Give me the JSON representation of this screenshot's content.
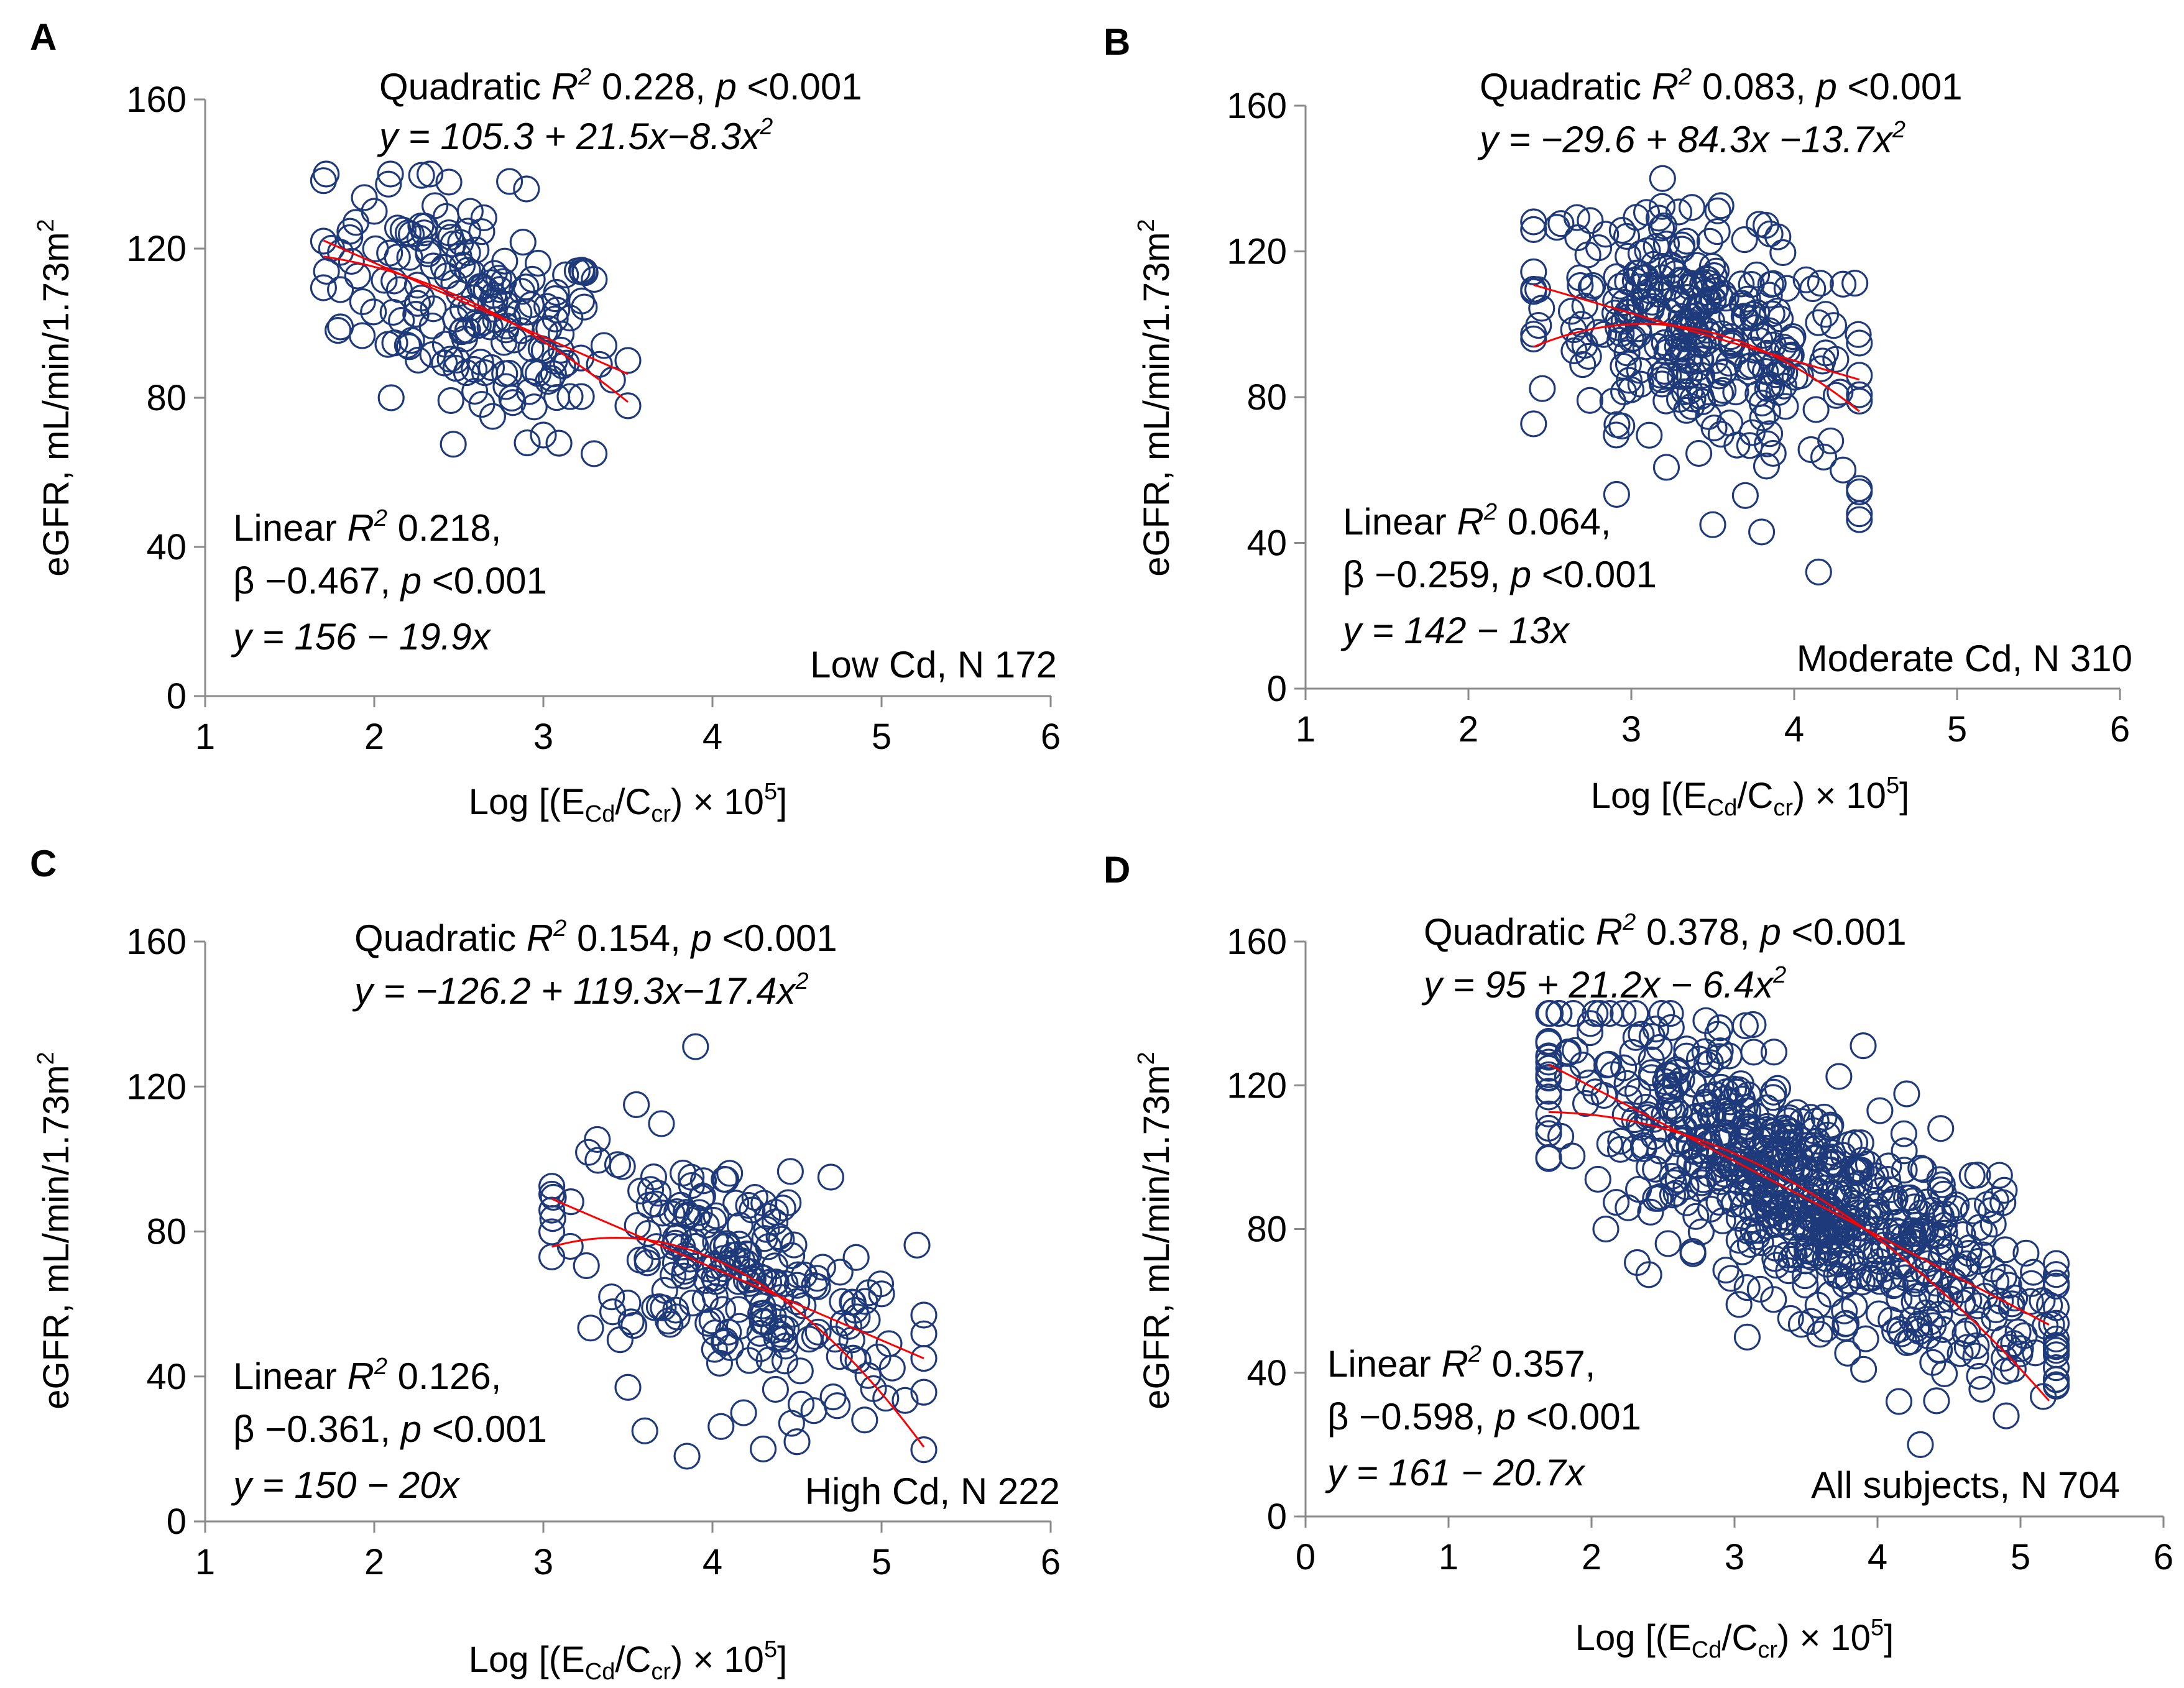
{
  "chart_data": [
    {
      "panel": "A",
      "type": "scatter",
      "xlabel": "Log [(E_Cd/C_cr) × 10^5]",
      "ylabel": "eGFR, mL/min/1.73m²",
      "xlim": [
        1,
        6
      ],
      "ylim": [
        0,
        160
      ],
      "xticks": [
        "1",
        "2",
        "3",
        "4",
        "5",
        "6"
      ],
      "yticks": [
        "0",
        "40",
        "80",
        "120",
        "160"
      ],
      "group_label": "Low Cd, N 172",
      "quad_title": "Quadratic",
      "quad_r2": "R",
      "quad_stats": " 0.228, ",
      "quad_p": "p",
      "quad_pval": " <0.001",
      "quad_eq": "y = 105.3 + 21.5x−8.3x",
      "lin_title": "Linear",
      "lin_r2": " 0.218,",
      "lin_beta": "β −0.467, ",
      "lin_pval": " <0.001",
      "lin_eq": "y = 156 − 19.9x",
      "linear": {
        "a": 156,
        "b": -19.9
      },
      "quadratic": {
        "a": 105.3,
        "b": 21.5,
        "c": -8.3
      },
      "fit_range": [
        1.7,
        3.5
      ],
      "n_points": 172,
      "x_range": [
        1.7,
        3.5
      ],
      "sample_points": [
        [
          1.7,
          122
        ],
        [
          1.8,
          119
        ],
        [
          1.8,
          109
        ],
        [
          1.8,
          99
        ],
        [
          2.0,
          130
        ],
        [
          2.1,
          80
        ],
        [
          2.3,
          126
        ],
        [
          2.5,
          118
        ],
        [
          2.8,
          138
        ],
        [
          2.9,
          136
        ],
        [
          3.0,
          70
        ],
        [
          3.3,
          65
        ],
        [
          3.5,
          90
        ],
        [
          3.2,
          114
        ],
        [
          2.6,
          100
        ],
        [
          2.7,
          75
        ]
      ]
    },
    {
      "panel": "B",
      "type": "scatter",
      "xlabel": "Log [(E_Cd/C_cr) × 10^5]",
      "ylabel": "eGFR, mL/min/1.73m²",
      "xlim": [
        1,
        6
      ],
      "ylim": [
        0,
        160
      ],
      "xticks": [
        "1",
        "2",
        "3",
        "4",
        "5",
        "6"
      ],
      "yticks": [
        "0",
        "40",
        "80",
        "120",
        "160"
      ],
      "group_label": "Moderate Cd, N 310",
      "quad_title": "Quadratic",
      "quad_r2": "R",
      "quad_stats": " 0.083, ",
      "quad_p": "p",
      "quad_pval": " <0.001",
      "quad_eq": "y = −29.6 + 84.3x −13.7x",
      "lin_title": "Linear",
      "lin_r2": " 0.064,",
      "lin_beta": "β −0.259, ",
      "lin_pval": " <0.001",
      "lin_eq": "y = 142 − 13x",
      "linear": {
        "a": 142,
        "b": -13
      },
      "quadratic": {
        "a": -29.6,
        "b": 84.3,
        "c": -13.7
      },
      "fit_range": [
        2.4,
        4.4
      ],
      "n_points": 310,
      "x_range": [
        2.4,
        4.4
      ],
      "sample_points": [
        [
          2.4,
          109
        ],
        [
          2.8,
          121
        ],
        [
          3.2,
          127
        ],
        [
          3.5,
          45
        ],
        [
          3.9,
          124
        ],
        [
          4.15,
          32
        ],
        [
          4.3,
          60
        ],
        [
          4.4,
          54
        ],
        [
          4.4,
          48
        ],
        [
          4.4,
          86
        ],
        [
          4.3,
          111
        ],
        [
          3.8,
          43
        ],
        [
          3.7,
          53
        ]
      ]
    },
    {
      "panel": "C",
      "type": "scatter",
      "xlabel": "Log [(E_Cd/C_cr) × 10^5]",
      "ylabel": "eGFR, mL/min/1.73m²",
      "xlim": [
        1,
        6
      ],
      "ylim": [
        0,
        160
      ],
      "xticks": [
        "1",
        "2",
        "3",
        "4",
        "5",
        "6"
      ],
      "yticks": [
        "0",
        "40",
        "80",
        "120",
        "160"
      ],
      "group_label": "High Cd, N 222",
      "quad_title": "Quadratic",
      "quad_r2": "R",
      "quad_stats": " 0.154, ",
      "quad_p": "p",
      "quad_pval": " <0.001",
      "quad_eq": "y = −126.2 + 119.3x−17.4x",
      "lin_title": "Linear",
      "lin_r2": " 0.126,",
      "lin_beta": "β −0.361, ",
      "lin_pval": " <0.001",
      "lin_eq": "y = 150 − 20x",
      "linear": {
        "a": 150,
        "b": -20
      },
      "quadratic": {
        "a": -126.2,
        "b": 119.3,
        "c": -17.4
      },
      "fit_range": [
        3.05,
        5.25
      ],
      "n_points": 222,
      "x_range": [
        3.05,
        5.25
      ],
      "sample_points": [
        [
          3.05,
          73
        ],
        [
          3.9,
          131
        ],
        [
          3.6,
          25
        ],
        [
          4.3,
          20
        ],
        [
          4.7,
          95
        ],
        [
          4.9,
          28
        ],
        [
          5.25,
          45
        ],
        [
          4.5,
          22
        ],
        [
          3.55,
          115
        ],
        [
          3.5,
          37
        ]
      ]
    },
    {
      "panel": "D",
      "type": "scatter",
      "xlabel": "Log [(E_Cd/C_cr) × 10^5]",
      "ylabel": "eGFR, mL/min/1.73m²",
      "xlim": [
        0,
        6
      ],
      "ylim": [
        0,
        160
      ],
      "xticks": [
        "0",
        "1",
        "2",
        "3",
        "4",
        "5",
        "6"
      ],
      "yticks": [
        "0",
        "40",
        "80",
        "120",
        "160"
      ],
      "group_label": "All subjects, N 704",
      "quad_title": "Quadratic",
      "quad_r2": "R",
      "quad_stats": " 0.378, ",
      "quad_p": "p",
      "quad_pval": " <0.001",
      "quad_eq": "y = 95 + 21.2x − 6.4x",
      "lin_title": "Linear",
      "lin_r2": " 0.357,",
      "lin_beta": " β −0.598, ",
      "lin_pval": " <0.001",
      "lin_eq": "y = 161 − 20.7x",
      "linear": {
        "a": 161,
        "b": -20.7
      },
      "quadratic": {
        "a": 95,
        "b": 21.2,
        "c": -6.4
      },
      "fit_range": [
        1.7,
        5.2
      ],
      "n_points": 704,
      "x_range": [
        1.7,
        5.25
      ],
      "sample_points": [
        [
          1.7,
          122
        ],
        [
          2.1,
          80
        ],
        [
          2.8,
          138
        ],
        [
          2.9,
          136
        ],
        [
          3.9,
          131
        ],
        [
          4.15,
          32
        ],
        [
          4.3,
          20
        ],
        [
          4.7,
          95
        ],
        [
          5.25,
          45
        ],
        [
          4.9,
          28
        ]
      ]
    }
  ],
  "superscript_two": "2",
  "x_label_parts": {
    "pre": "Log [(E",
    "sub1": "Cd",
    "mid": "/C",
    "sub2": "cr",
    "post": ") × 10",
    "sup": "5",
    "end": "]"
  },
  "y_label_parts": {
    "main": "eGFR, mL/min/1.73m",
    "sup": "2"
  }
}
